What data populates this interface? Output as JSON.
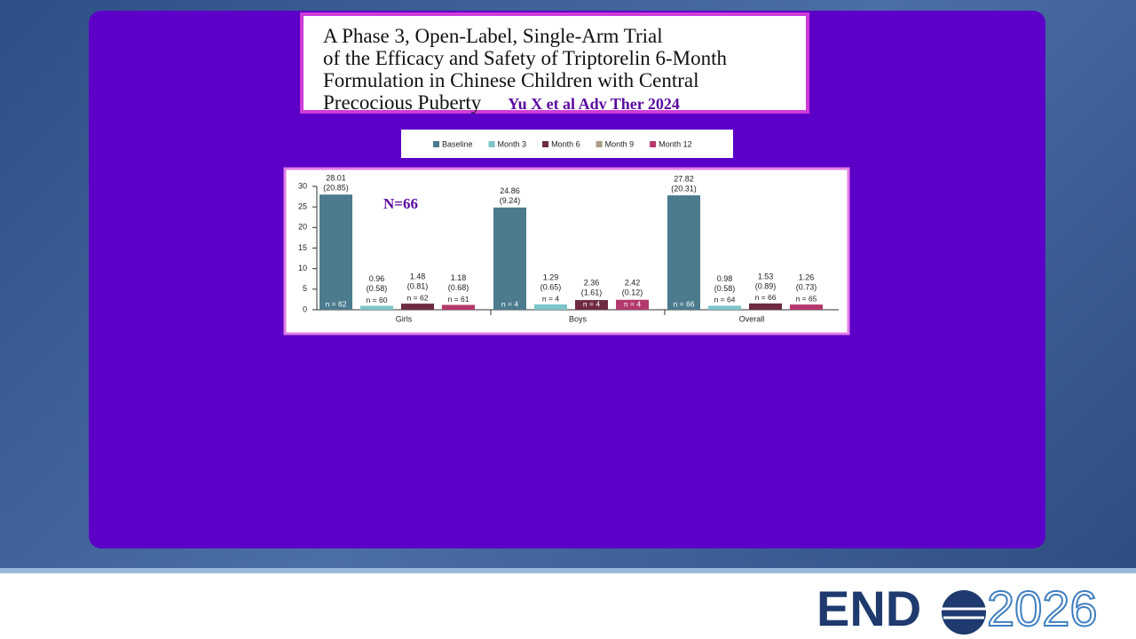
{
  "slide": {
    "title_lines": [
      "A Phase 3, Open-Label, Single-Arm Trial",
      "of the Efficacy and Safety of Triptorelin 6-Month",
      "Formulation in Chinese Children with Central",
      "Precocious Puberty"
    ],
    "citation": "Yu X et al Adv Ther 2024"
  },
  "logo": {
    "brand": "END",
    "year": "2026"
  },
  "chart_data": {
    "type": "bar",
    "annotation": "N=66",
    "categories": [
      "Girls",
      "Boys",
      "Overall"
    ],
    "series": [
      {
        "name": "Baseline",
        "color": "#4b7b8d",
        "values": [
          28.01,
          24.86,
          27.82
        ],
        "sd_labels": [
          "(20.85)",
          "(9.24)",
          "(20.31)"
        ],
        "n_labels": [
          "n = 62",
          "n = 4",
          "n = 66"
        ]
      },
      {
        "name": "Month 3",
        "color": "#7cc5c9",
        "values": [
          0.96,
          1.29,
          0.98
        ],
        "sd_labels": [
          "(0.58)",
          "(0.65)",
          "(0.58)"
        ],
        "n_labels": [
          "n = 60",
          "n = 4",
          "n = 64"
        ]
      },
      {
        "name": "Month 6",
        "color": "#6e2b40",
        "values": [
          1.48,
          2.36,
          1.53
        ],
        "sd_labels": [
          "(0.81)",
          "(1.61)",
          "(0.89)"
        ],
        "n_labels": [
          "n = 62",
          "n = 4",
          "n = 66"
        ]
      },
      {
        "name": "Month 9",
        "color": "#a99c82",
        "values": [
          null,
          null,
          null
        ]
      },
      {
        "name": "Month 12",
        "color": "#b3396c",
        "values": [
          1.18,
          2.42,
          1.26
        ],
        "sd_labels": [
          "(0.68)",
          "(0.12)",
          "(0.73)"
        ],
        "n_labels": [
          "n = 61",
          "n = 4",
          "n = 65"
        ]
      }
    ],
    "ylim": [
      0,
      30
    ],
    "yticks": [
      0,
      5,
      10,
      15,
      20,
      25,
      30
    ],
    "grid": false
  }
}
